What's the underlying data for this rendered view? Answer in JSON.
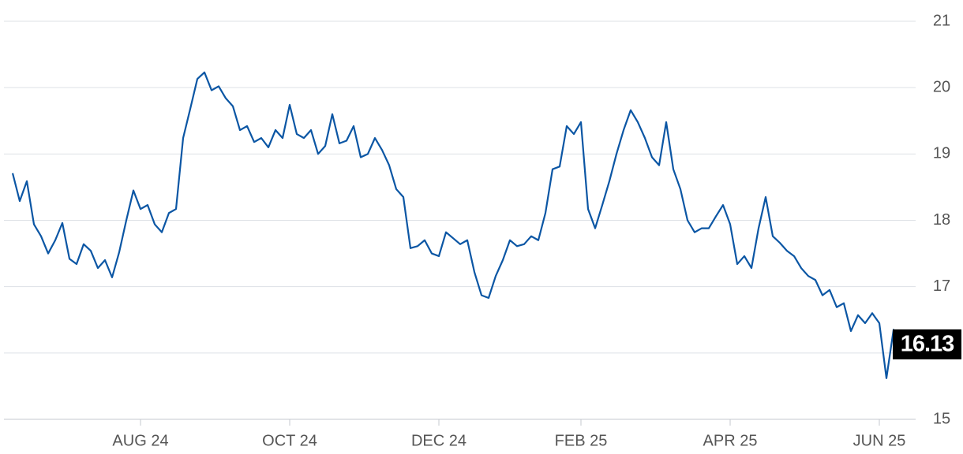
{
  "chart_data": {
    "type": "line",
    "categories": [
      null,
      null,
      null,
      null,
      null,
      null,
      null,
      null,
      null,
      null,
      null,
      null,
      null,
      null,
      null,
      null,
      null,
      null,
      "AUG 24",
      null,
      null,
      null,
      null,
      null,
      null,
      null,
      null,
      null,
      null,
      null,
      null,
      null,
      null,
      null,
      null,
      null,
      null,
      null,
      null,
      "OCT 24",
      null,
      null,
      null,
      null,
      null,
      null,
      null,
      null,
      null,
      null,
      null,
      null,
      null,
      null,
      null,
      null,
      null,
      null,
      null,
      null,
      "DEC 24",
      null,
      null,
      null,
      null,
      null,
      null,
      null,
      null,
      null,
      null,
      null,
      null,
      null,
      null,
      null,
      null,
      null,
      null,
      null,
      "FEB 25",
      null,
      null,
      null,
      null,
      null,
      null,
      null,
      null,
      null,
      null,
      null,
      null,
      null,
      null,
      null,
      null,
      null,
      null,
      null,
      null,
      "APR 25",
      null,
      null,
      null,
      null,
      null,
      null,
      null,
      null,
      null,
      null,
      null,
      null,
      null,
      null,
      null,
      null,
      null,
      null,
      null,
      null,
      "JUN 25",
      null,
      null,
      null
    ],
    "series": [
      {
        "color": "#0b56a4",
        "values": [
          18.71,
          18.29,
          18.59,
          17.94,
          17.76,
          17.5,
          17.7,
          17.96,
          17.42,
          17.34,
          17.64,
          17.54,
          17.28,
          17.4,
          17.14,
          17.52,
          18.0,
          18.45,
          18.17,
          18.23,
          17.94,
          17.82,
          18.11,
          18.17,
          19.24,
          19.68,
          20.13,
          20.23,
          19.96,
          20.02,
          19.84,
          19.72,
          19.36,
          19.42,
          19.18,
          19.24,
          19.1,
          19.36,
          19.24,
          19.74,
          19.3,
          19.24,
          19.36,
          19.0,
          19.12,
          19.6,
          19.16,
          19.2,
          19.42,
          18.95,
          19.0,
          19.24,
          19.06,
          18.83,
          18.47,
          18.35,
          17.58,
          17.61,
          17.7,
          17.5,
          17.46,
          17.82,
          17.73,
          17.64,
          17.7,
          17.22,
          16.87,
          16.83,
          17.16,
          17.4,
          17.7,
          17.61,
          17.64,
          17.76,
          17.7,
          18.11,
          18.77,
          18.81,
          19.42,
          19.3,
          19.48,
          18.17,
          17.88,
          18.23,
          18.59,
          19.0,
          19.36,
          19.66,
          19.48,
          19.24,
          18.95,
          18.83,
          19.48,
          18.77,
          18.47,
          18.0,
          17.82,
          17.88,
          17.88,
          18.06,
          18.23,
          17.94,
          17.34,
          17.46,
          17.28,
          17.88,
          18.35,
          17.76,
          17.66,
          17.54,
          17.46,
          17.28,
          17.16,
          17.1,
          16.87,
          16.95,
          16.69,
          16.75,
          16.33,
          16.57,
          16.45,
          16.6,
          16.45,
          15.62,
          16.35,
          16.13
        ]
      }
    ],
    "ylim": [
      15,
      21
    ],
    "yticks": [
      15,
      16,
      17,
      18,
      19,
      20,
      21
    ],
    "grid": true
  }
}
